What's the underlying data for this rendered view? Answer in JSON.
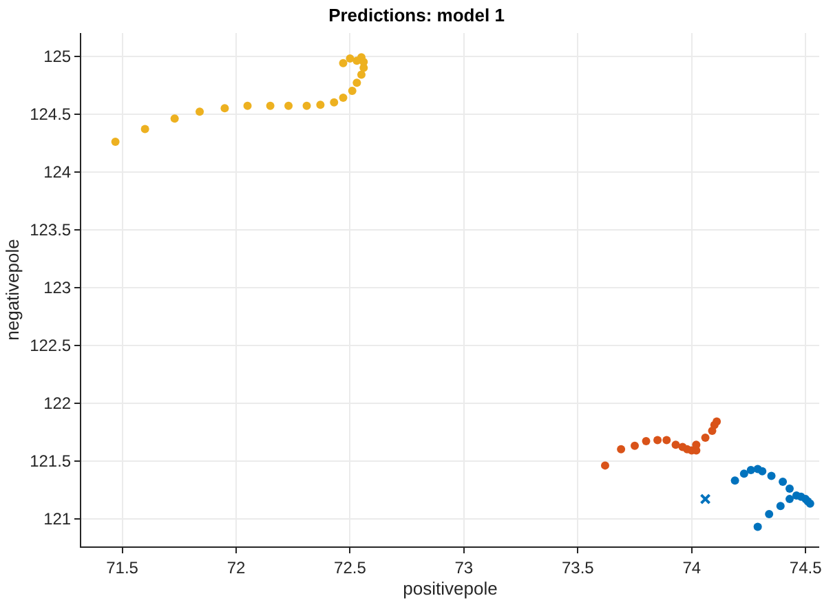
{
  "chart_data": {
    "type": "scatter",
    "title": "Predictions: model 1",
    "xlabel": "positivepole",
    "ylabel": "negativepole",
    "xlim": [
      71.32,
      74.56
    ],
    "ylim": [
      120.76,
      125.2
    ],
    "xticks": [
      71.5,
      72,
      72.5,
      73,
      73.5,
      74,
      74.5
    ],
    "yticks": [
      121,
      121.5,
      122,
      122.5,
      123,
      123.5,
      124,
      124.5,
      125
    ],
    "grid": true,
    "marker": "circle",
    "series": [
      {
        "color": "#edb120",
        "x": [
          71.47,
          71.6,
          71.73,
          71.84,
          71.95,
          72.05,
          72.15,
          72.23,
          72.31,
          72.37,
          72.43,
          72.47,
          72.51,
          72.53,
          72.55,
          72.56,
          72.56,
          72.55,
          72.53,
          72.5,
          72.47
        ],
        "values": [
          124.26,
          124.37,
          124.46,
          124.52,
          124.55,
          124.57,
          124.57,
          124.57,
          124.57,
          124.58,
          124.6,
          124.64,
          124.7,
          124.77,
          124.84,
          124.9,
          124.95,
          124.99,
          124.96,
          124.98,
          124.94
        ]
      },
      {
        "color": "#d95319",
        "x": [
          73.62,
          73.69,
          73.75,
          73.8,
          73.85,
          73.89,
          73.93,
          73.96,
          73.98,
          74.0,
          74.02,
          74.02,
          74.06,
          74.09,
          74.1,
          74.11
        ],
        "values": [
          121.46,
          121.6,
          121.63,
          121.67,
          121.68,
          121.68,
          121.64,
          121.62,
          121.6,
          121.59,
          121.59,
          121.64,
          121.7,
          121.76,
          121.81,
          121.84
        ]
      },
      {
        "color": "#0072bd",
        "x": [
          74.19,
          74.23,
          74.26,
          74.29,
          74.31,
          74.35,
          74.4,
          74.43,
          74.46,
          74.48,
          74.5,
          74.51,
          74.52,
          74.43,
          74.39,
          74.34,
          74.29
        ],
        "values": [
          121.33,
          121.39,
          121.42,
          121.43,
          121.41,
          121.37,
          121.32,
          121.26,
          121.2,
          121.19,
          121.17,
          121.15,
          121.13,
          121.17,
          121.11,
          121.04,
          120.93
        ]
      },
      {
        "color": "#0072bd",
        "marker": "cross",
        "x": [
          74.06
        ],
        "values": [
          121.17
        ]
      }
    ]
  }
}
